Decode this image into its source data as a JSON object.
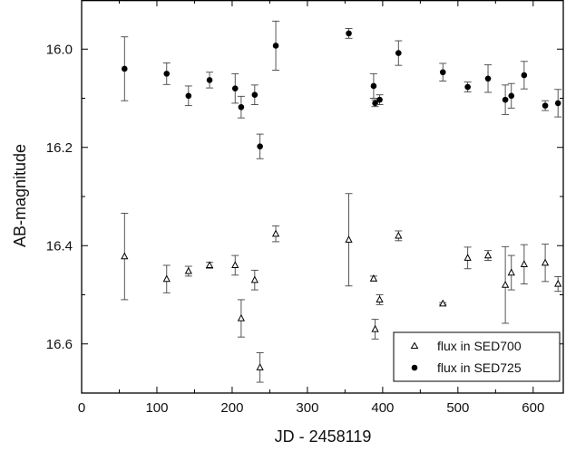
{
  "chart_data": {
    "type": "scatter",
    "xlabel": "JD - 2458119",
    "ylabel": "AB-magnitude",
    "xlim": [
      0,
      640
    ],
    "ylim": [
      16.7,
      15.9
    ],
    "y_inverted": true,
    "x_ticks": [
      0,
      100,
      200,
      300,
      400,
      500,
      600
    ],
    "y_ticks": [
      16.0,
      16.2,
      16.4,
      16.6
    ],
    "y_tick_labels": [
      "16.0",
      "16.2",
      "16.4",
      "16.6"
    ],
    "grid": false,
    "error_bars": true,
    "legend_position": "bottom-right",
    "series": [
      {
        "name": "flux in SED700",
        "marker": "open-triangle",
        "points": [
          {
            "x": 57,
            "y": 16.422,
            "err": 0.088
          },
          {
            "x": 113,
            "y": 16.468,
            "err": 0.028
          },
          {
            "x": 142,
            "y": 16.452,
            "err": 0.01
          },
          {
            "x": 170,
            "y": 16.44,
            "err": 0.006
          },
          {
            "x": 204,
            "y": 16.44,
            "err": 0.02
          },
          {
            "x": 212,
            "y": 16.548,
            "err": 0.038
          },
          {
            "x": 230,
            "y": 16.47,
            "err": 0.02
          },
          {
            "x": 237,
            "y": 16.648,
            "err": 0.03
          },
          {
            "x": 258,
            "y": 16.376,
            "err": 0.016
          },
          {
            "x": 355,
            "y": 16.388,
            "err": 0.094
          },
          {
            "x": 388,
            "y": 16.467,
            "err": 0.005
          },
          {
            "x": 390,
            "y": 16.57,
            "err": 0.02
          },
          {
            "x": 396,
            "y": 16.51,
            "err": 0.01
          },
          {
            "x": 421,
            "y": 16.38,
            "err": 0.01
          },
          {
            "x": 480,
            "y": 16.518,
            "err": 0.002
          },
          {
            "x": 513,
            "y": 16.425,
            "err": 0.022
          },
          {
            "x": 540,
            "y": 16.42,
            "err": 0.01
          },
          {
            "x": 563,
            "y": 16.48,
            "err": 0.078
          },
          {
            "x": 571,
            "y": 16.455,
            "err": 0.035
          },
          {
            "x": 588,
            "y": 16.438,
            "err": 0.04
          },
          {
            "x": 616,
            "y": 16.435,
            "err": 0.038
          },
          {
            "x": 633,
            "y": 16.478,
            "err": 0.015
          }
        ]
      },
      {
        "name": "flux in SED725",
        "marker": "filled-circle",
        "points": [
          {
            "x": 57,
            "y": 16.04,
            "err": 0.065
          },
          {
            "x": 113,
            "y": 16.05,
            "err": 0.022
          },
          {
            "x": 142,
            "y": 16.095,
            "err": 0.02
          },
          {
            "x": 170,
            "y": 16.063,
            "err": 0.016
          },
          {
            "x": 204,
            "y": 16.08,
            "err": 0.03
          },
          {
            "x": 212,
            "y": 16.118,
            "err": 0.022
          },
          {
            "x": 230,
            "y": 16.093,
            "err": 0.02
          },
          {
            "x": 237,
            "y": 16.198,
            "err": 0.025
          },
          {
            "x": 258,
            "y": 15.993,
            "err": 0.05
          },
          {
            "x": 355,
            "y": 15.968,
            "err": 0.01
          },
          {
            "x": 388,
            "y": 16.075,
            "err": 0.025
          },
          {
            "x": 390,
            "y": 16.11,
            "err": 0.007
          },
          {
            "x": 396,
            "y": 16.103,
            "err": 0.01
          },
          {
            "x": 421,
            "y": 16.008,
            "err": 0.025
          },
          {
            "x": 480,
            "y": 16.047,
            "err": 0.018
          },
          {
            "x": 513,
            "y": 16.077,
            "err": 0.01
          },
          {
            "x": 540,
            "y": 16.06,
            "err": 0.028
          },
          {
            "x": 563,
            "y": 16.103,
            "err": 0.03
          },
          {
            "x": 571,
            "y": 16.095,
            "err": 0.025
          },
          {
            "x": 588,
            "y": 16.053,
            "err": 0.028
          },
          {
            "x": 616,
            "y": 16.115,
            "err": 0.01
          },
          {
            "x": 633,
            "y": 16.11,
            "err": 0.028
          }
        ]
      }
    ]
  }
}
